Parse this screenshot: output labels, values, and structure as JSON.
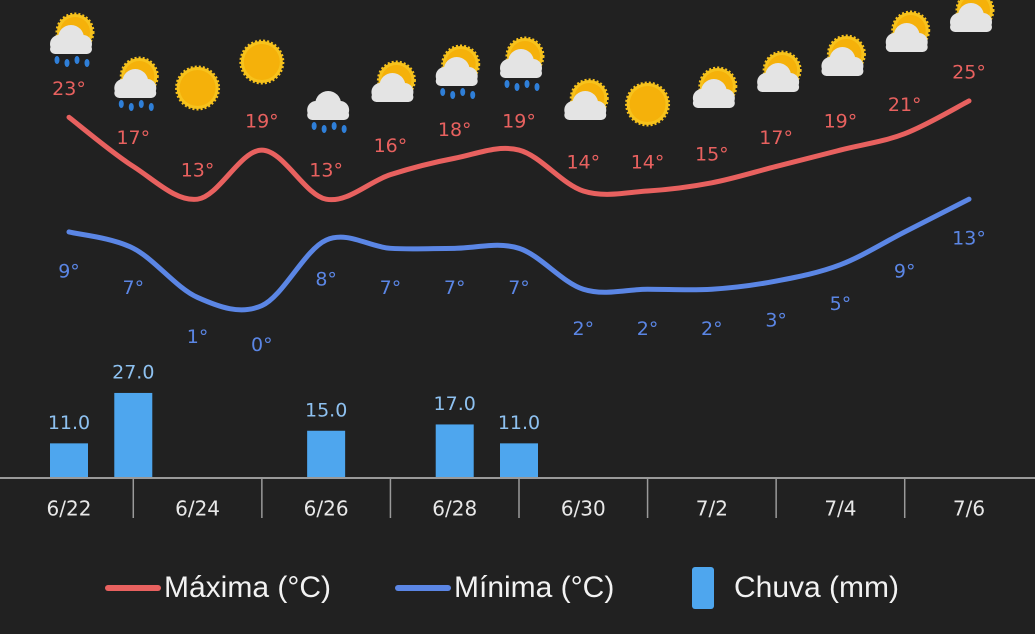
{
  "chart_data": {
    "type": "line",
    "categories": [
      "6/22",
      null,
      "6/24",
      null,
      "6/26",
      null,
      "6/28",
      null,
      "6/30",
      null,
      "7/2",
      null,
      "7/4",
      null,
      "7/6"
    ],
    "ylim": [
      -2,
      30
    ],
    "y2lim": [
      0,
      30
    ],
    "series": [
      {
        "name": "Máxima (°C)",
        "color": "#e8615f",
        "values": [
          23,
          17,
          13,
          19,
          13,
          16,
          18,
          19,
          14,
          14,
          15,
          17,
          19,
          21,
          25
        ],
        "value_labels": [
          "23°",
          "17°",
          "13°",
          "19°",
          "13°",
          "16°",
          "18°",
          "19°",
          "14°",
          "14°",
          "15°",
          "17°",
          "19°",
          "21°",
          "25°"
        ]
      },
      {
        "name": "Mínima (°C)",
        "color": "#5b86e5",
        "values": [
          9,
          7,
          1,
          0,
          8,
          7,
          7,
          7,
          2,
          2,
          2,
          3,
          5,
          9,
          13
        ],
        "value_labels": [
          "9°",
          "7°",
          "1°",
          "0°",
          "8°",
          "7°",
          "7°",
          "7°",
          "2°",
          "2°",
          "2°",
          "3°",
          "5°",
          "9°",
          "13°"
        ]
      },
      {
        "name": "Chuva (mm)",
        "color": "#4ea6ee",
        "type": "bar",
        "axis": "y2",
        "values": [
          11,
          27,
          null,
          null,
          15,
          null,
          17,
          11,
          null,
          null,
          null,
          null,
          null,
          null,
          null
        ],
        "value_labels": [
          "11.0",
          "27.0",
          null,
          null,
          "15.0",
          null,
          "17.0",
          "11.0",
          null,
          null,
          null,
          null,
          null,
          null,
          null
        ]
      }
    ]
  }
}
